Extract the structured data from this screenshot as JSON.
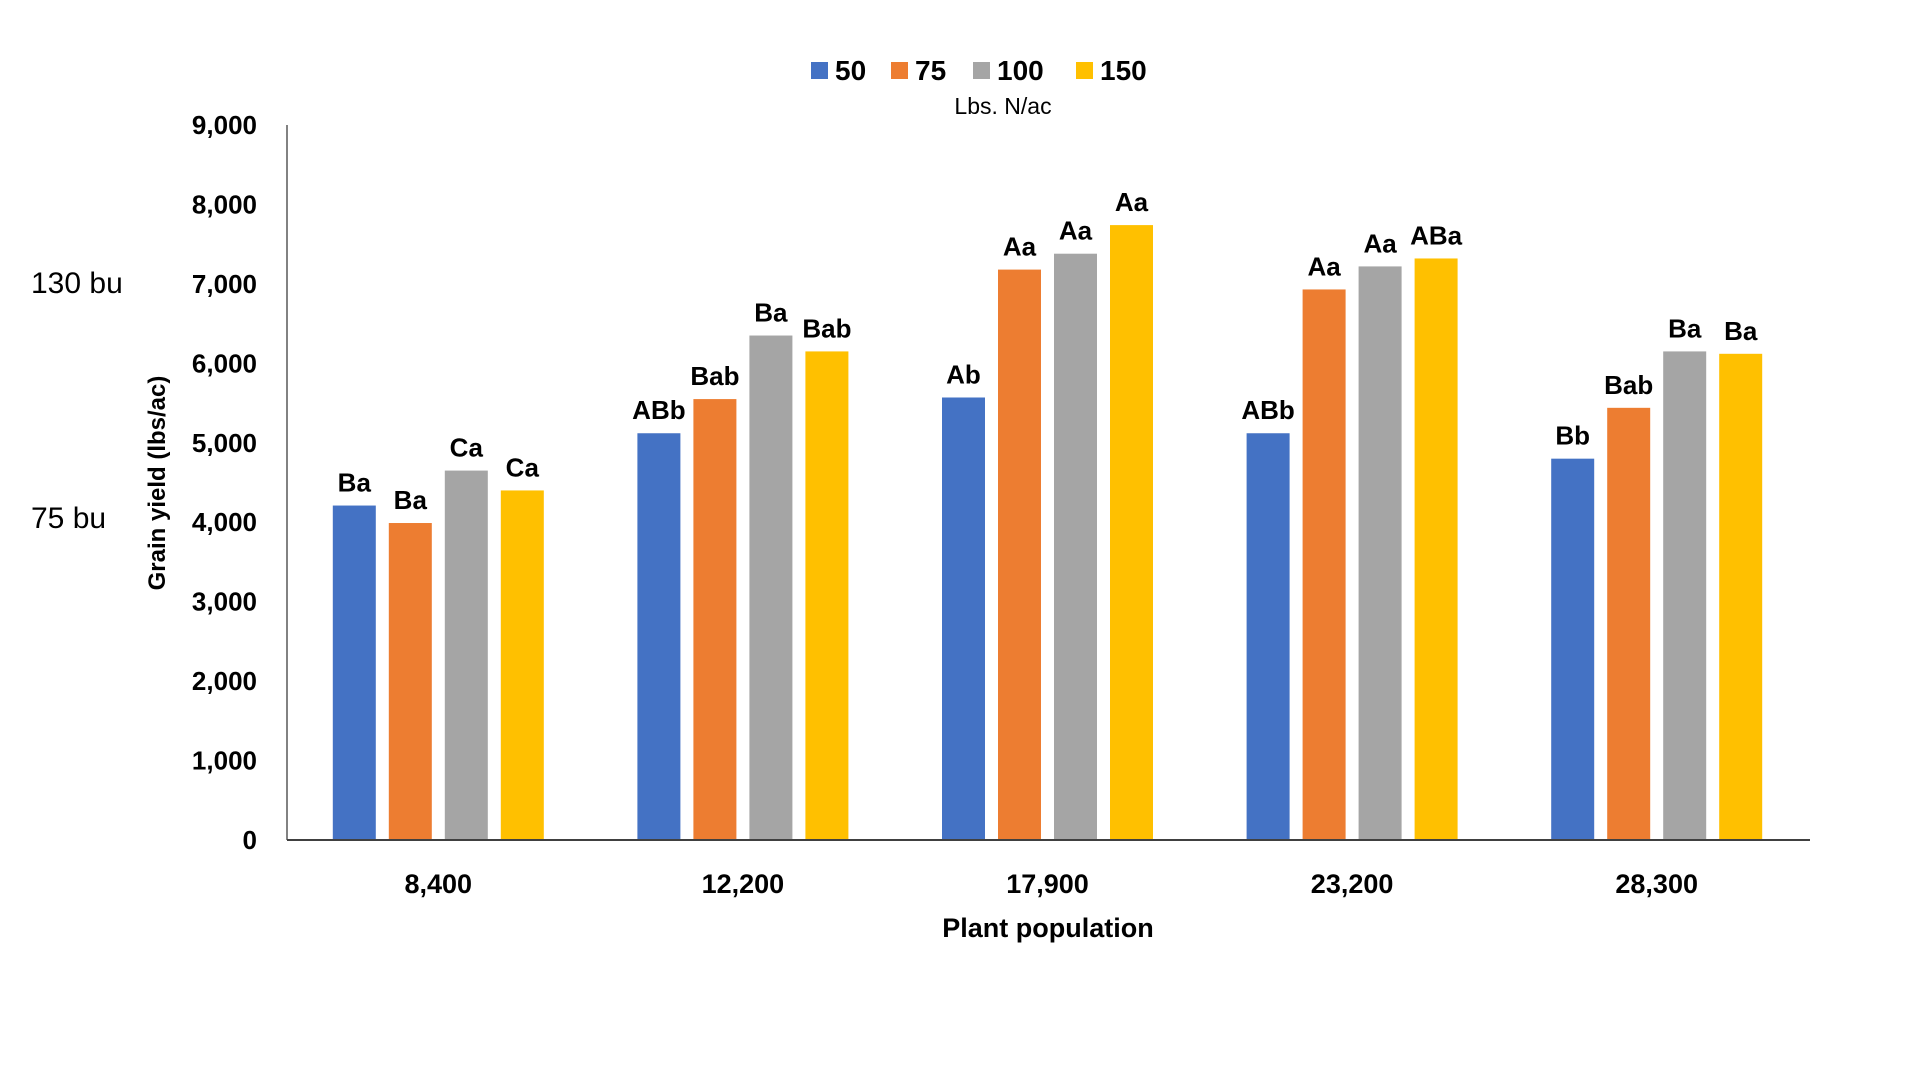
{
  "chart_data": {
    "type": "bar",
    "title": "",
    "xlabel": "Plant population",
    "ylabel": "Grain yield (lbs/ac)",
    "ylim": [
      0,
      9000
    ],
    "yticks": [
      "0",
      "1,000",
      "2,000",
      "3,000",
      "4,000",
      "5,000",
      "6,000",
      "7,000",
      "8,000",
      "9,000"
    ],
    "ytick_values": [
      0,
      1000,
      2000,
      3000,
      4000,
      5000,
      6000,
      7000,
      8000,
      9000
    ],
    "grid": false,
    "categories": [
      "8,400",
      "12,200",
      "17,900",
      "23,200",
      "28,300"
    ],
    "legend": {
      "placement": "top-center",
      "subtitle": "Lbs. N/ac"
    },
    "series": [
      {
        "name": "50",
        "color": "#4472C4",
        "values": [
          4210,
          5120,
          5570,
          5120,
          4800
        ],
        "labels": [
          "Ba",
          "ABb",
          "Ab",
          "ABb",
          "Bb"
        ]
      },
      {
        "name": "75",
        "color": "#ED7D31",
        "values": [
          3990,
          5550,
          7180,
          6930,
          5440
        ],
        "labels": [
          "Ba",
          "Bab",
          "Aa",
          "Aa",
          "Bab"
        ]
      },
      {
        "name": "100",
        "color": "#A5A5A5",
        "values": [
          4650,
          6350,
          7380,
          7220,
          6150
        ],
        "labels": [
          "Ca",
          "Ba",
          "Aa",
          "Aa",
          "Ba"
        ]
      },
      {
        "name": "150",
        "color": "#FFC000",
        "values": [
          4400,
          6150,
          7740,
          7320,
          6120
        ],
        "labels": [
          "Ca",
          "Bab",
          "Aa",
          "ABa",
          "Ba"
        ]
      }
    ],
    "annotations": [
      {
        "text": "130 bu",
        "y": 7000
      },
      {
        "text": "75 bu",
        "y": 4000
      }
    ]
  }
}
